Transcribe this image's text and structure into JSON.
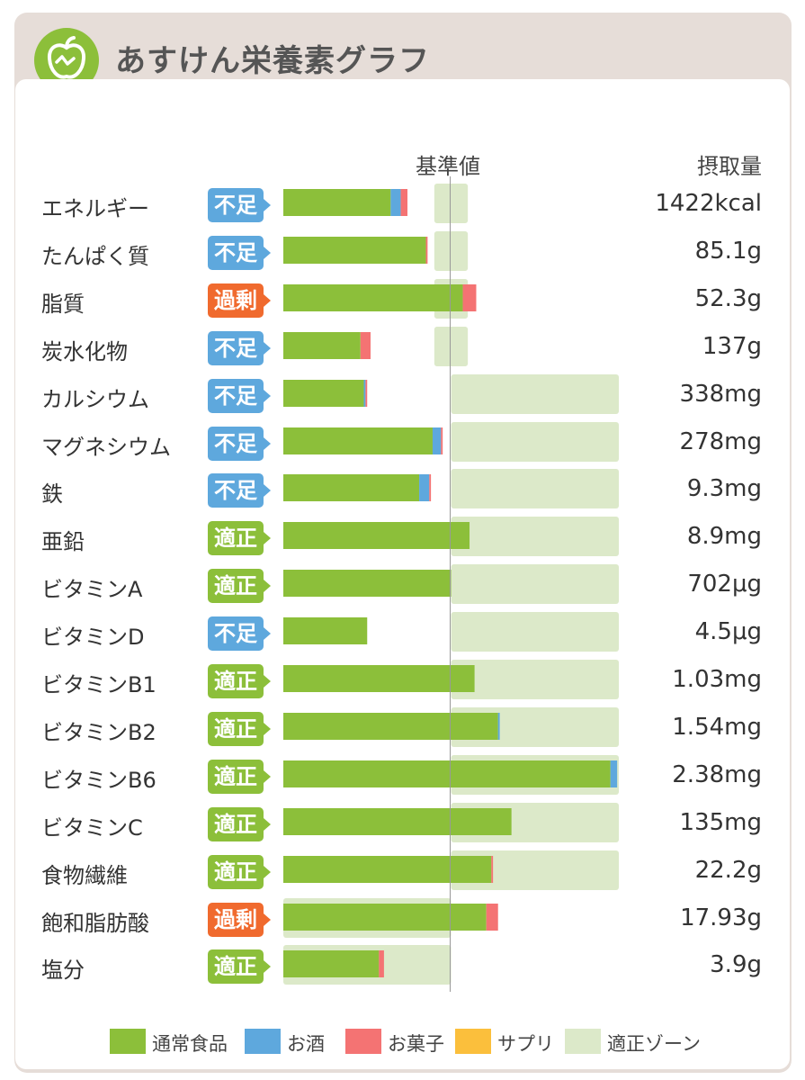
{
  "title": "あすけん栄養素グラフ",
  "headers": {
    "reference": "基準値",
    "intake": "摂取量"
  },
  "colors": {
    "normal": "#8cbf3a",
    "alcohol": "#5ea8dd",
    "sweets": "#f47373",
    "supplement": "#fbbf3c",
    "zone": "#dce9c9"
  },
  "status_labels": {
    "short": "不足",
    "over": "過剰",
    "ok": "適正"
  },
  "legend": [
    {
      "key": "normal",
      "label": "通常食品"
    },
    {
      "key": "alcohol",
      "label": "お酒"
    },
    {
      "key": "sweets",
      "label": "お菓子"
    },
    {
      "key": "supplement",
      "label": "サプリ"
    },
    {
      "key": "zone",
      "label": "適正ゾーン"
    }
  ],
  "chart_data": {
    "type": "bar",
    "orientation": "horizontal",
    "stacked": true,
    "unit": "percent of reference value",
    "reference_line": 100,
    "series": [
      {
        "name": "通常食品",
        "key": "normal"
      },
      {
        "name": "お酒",
        "key": "alcohol"
      },
      {
        "name": "お菓子",
        "key": "sweets"
      },
      {
        "name": "サプリ",
        "key": "supplement"
      }
    ],
    "rows": [
      {
        "label": "エネルギー",
        "status": "short",
        "value": "1422kcal",
        "normal": 64,
        "alcohol": 6,
        "sweets": 4,
        "supplement": 0,
        "zone": [
          90,
          110
        ]
      },
      {
        "label": "たんぱく質",
        "status": "short",
        "value": "85.1g",
        "normal": 85,
        "alcohol": 0,
        "sweets": 1,
        "supplement": 0,
        "zone": [
          90,
          110
        ]
      },
      {
        "label": "脂質",
        "status": "over",
        "value": "52.3g",
        "normal": 107,
        "alcohol": 0,
        "sweets": 8,
        "supplement": 0,
        "zone": [
          90,
          110
        ]
      },
      {
        "label": "炭水化物",
        "status": "short",
        "value": "137g",
        "normal": 46,
        "alcohol": 0,
        "sweets": 6,
        "supplement": 0,
        "zone": [
          90,
          110
        ]
      },
      {
        "label": "カルシウム",
        "status": "short",
        "value": "338mg",
        "normal": 48,
        "alcohol": 1,
        "sweets": 1,
        "supplement": 0,
        "zone": [
          100,
          200
        ]
      },
      {
        "label": "マグネシウム",
        "status": "short",
        "value": "278mg",
        "normal": 89,
        "alcohol": 5,
        "sweets": 1,
        "supplement": 0,
        "zone": [
          100,
          200
        ]
      },
      {
        "label": "鉄",
        "status": "short",
        "value": "9.3mg",
        "normal": 81,
        "alcohol": 6,
        "sweets": 1,
        "supplement": 0,
        "zone": [
          100,
          200
        ]
      },
      {
        "label": "亜鉛",
        "status": "ok",
        "value": "8.9mg",
        "normal": 111,
        "alcohol": 0,
        "sweets": 0,
        "supplement": 0,
        "zone": [
          100,
          200
        ]
      },
      {
        "label": "ビタミンA",
        "status": "ok",
        "value": "702μg",
        "normal": 100,
        "alcohol": 0,
        "sweets": 0,
        "supplement": 0,
        "zone": [
          100,
          200
        ]
      },
      {
        "label": "ビタミンD",
        "status": "short",
        "value": "4.5μg",
        "normal": 50,
        "alcohol": 0,
        "sweets": 0,
        "supplement": 0,
        "zone": [
          100,
          200
        ]
      },
      {
        "label": "ビタミンB1",
        "status": "ok",
        "value": "1.03mg",
        "normal": 114,
        "alcohol": 0,
        "sweets": 0,
        "supplement": 0,
        "zone": [
          100,
          200
        ]
      },
      {
        "label": "ビタミンB2",
        "status": "ok",
        "value": "1.54mg",
        "normal": 128,
        "alcohol": 1,
        "sweets": 0,
        "supplement": 0,
        "zone": [
          100,
          200
        ]
      },
      {
        "label": "ビタミンB6",
        "status": "ok",
        "value": "2.38mg",
        "normal": 195,
        "alcohol": 4,
        "sweets": 0,
        "supplement": 0,
        "zone": [
          100,
          200
        ]
      },
      {
        "label": "ビタミンC",
        "status": "ok",
        "value": "135mg",
        "normal": 136,
        "alcohol": 0,
        "sweets": 0,
        "supplement": 0,
        "zone": [
          100,
          200
        ]
      },
      {
        "label": "食物繊維",
        "status": "ok",
        "value": "22.2g",
        "normal": 124,
        "alcohol": 0,
        "sweets": 1,
        "supplement": 0,
        "zone": [
          100,
          200
        ]
      },
      {
        "label": "飽和脂肪酸",
        "status": "over",
        "value": "17.93g",
        "normal": 121,
        "alcohol": 0,
        "sweets": 7,
        "supplement": 0,
        "zone": [
          0,
          100
        ]
      },
      {
        "label": "塩分",
        "status": "ok",
        "value": "3.9g",
        "normal": 57,
        "alcohol": 0,
        "sweets": 3,
        "supplement": 0,
        "zone": [
          0,
          100
        ]
      }
    ]
  }
}
